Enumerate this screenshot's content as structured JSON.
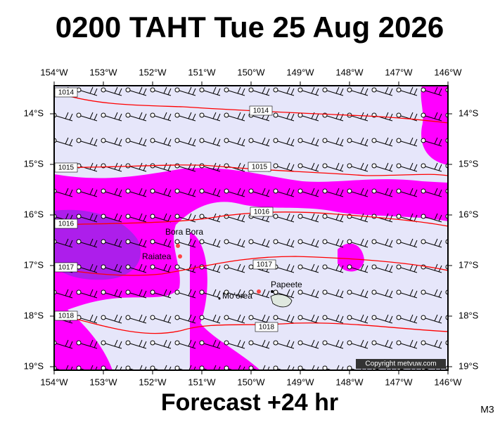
{
  "title": "0200 TAHT Tue 25 Aug 2026",
  "longitudes": [
    "154°W",
    "153°W",
    "152°W",
    "151°W",
    "150°W",
    "149°W",
    "148°W",
    "147°W",
    "146°W"
  ],
  "latitudes": [
    "14°S",
    "15°S",
    "16°S",
    "17°S",
    "18°S",
    "19°S"
  ],
  "isobars": [
    {
      "label": "1014"
    },
    {
      "label": "1015"
    },
    {
      "label": "1016"
    },
    {
      "label": "1017"
    },
    {
      "label": "1018"
    }
  ],
  "places": [
    "Bora Bora",
    "Raiatea",
    "Mo'orea",
    "Papeete"
  ],
  "copyright": "Copyright metvuw.com",
  "footer": "Forecast +24 hr",
  "code": "M3"
}
